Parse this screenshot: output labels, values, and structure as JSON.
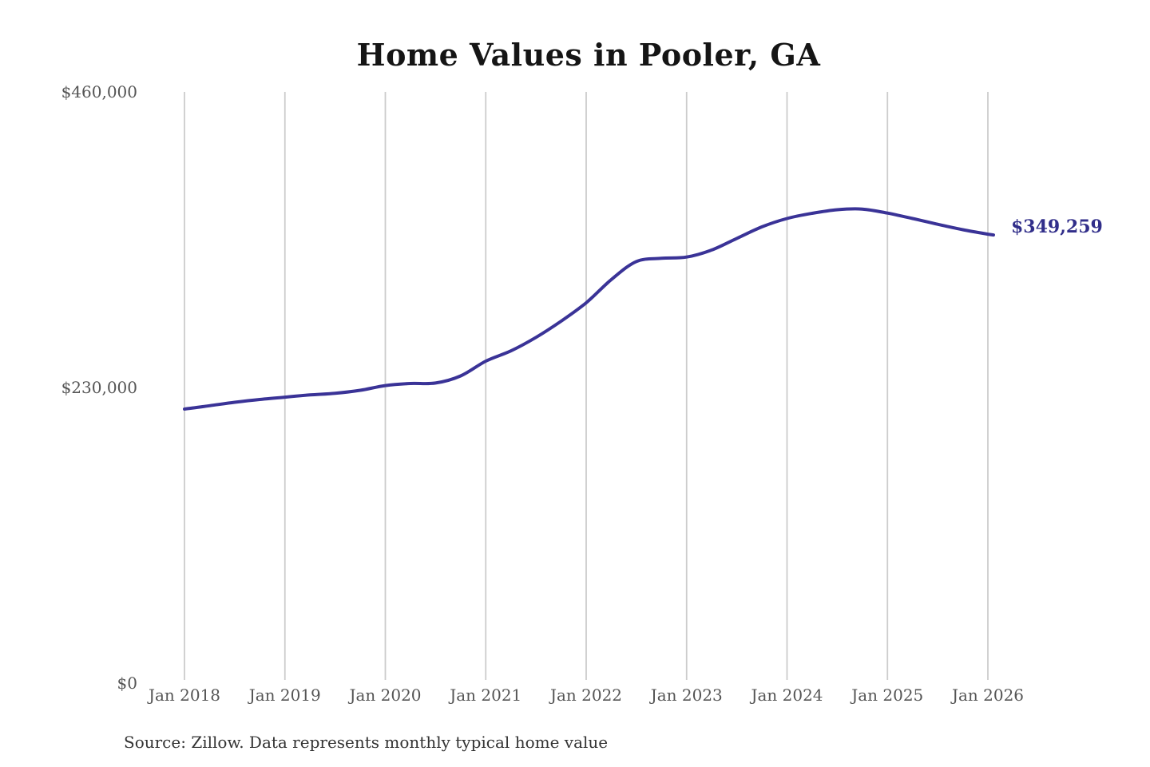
{
  "title": "Home Values in Pooler, GA",
  "source_note": "Source: Zillow. Data represents monthly typical home value",
  "colors": {
    "line": "#3a3397",
    "annotation": "#312e8a",
    "gridline": "#cccccc",
    "axis_text": "#555555",
    "title_text": "#151515",
    "note_text": "#333333"
  },
  "chart_data": {
    "type": "line",
    "title": "Home Values in Pooler, GA",
    "series_name": "Monthly typical home value",
    "unit": "USD",
    "xlabel": "",
    "ylabel": "",
    "ylim": [
      0,
      460000
    ],
    "grid": "vertical-only",
    "legend": "none",
    "line_color": "#3a3397",
    "end_label": "$349,259",
    "end_value": 349259,
    "x_ticks": [
      "Jan 2018",
      "Jan 2019",
      "Jan 2020",
      "Jan 2021",
      "Jan 2022",
      "Jan 2023",
      "Jan 2024",
      "Jan 2025",
      "Jan 2026"
    ],
    "y_ticks": [
      {
        "label": "$460,000",
        "value": 460000
      },
      {
        "label": "$230,000",
        "value": 230000
      },
      {
        "label": "$0",
        "value": 0
      }
    ],
    "points": [
      [
        "2018-01",
        213200
      ],
      [
        "2018-04",
        215800
      ],
      [
        "2018-07",
        218500
      ],
      [
        "2018-10",
        220700
      ],
      [
        "2019-01",
        222500
      ],
      [
        "2019-04",
        224200
      ],
      [
        "2019-07",
        225500
      ],
      [
        "2019-10",
        227800
      ],
      [
        "2020-01",
        231500
      ],
      [
        "2020-04",
        233100
      ],
      [
        "2020-07",
        233500
      ],
      [
        "2020-10",
        239000
      ],
      [
        "2021-01",
        250500
      ],
      [
        "2021-04",
        258500
      ],
      [
        "2021-07",
        269000
      ],
      [
        "2021-10",
        281600
      ],
      [
        "2022-01",
        295900
      ],
      [
        "2022-04",
        313900
      ],
      [
        "2022-07",
        328000
      ],
      [
        "2022-10",
        330500
      ],
      [
        "2023-01",
        331500
      ],
      [
        "2023-04",
        337000
      ],
      [
        "2023-07",
        346000
      ],
      [
        "2023-10",
        355000
      ],
      [
        "2024-01",
        361500
      ],
      [
        "2024-04",
        365500
      ],
      [
        "2024-07",
        368300
      ],
      [
        "2024-10",
        368800
      ],
      [
        "2025-01",
        365700
      ],
      [
        "2025-04",
        361500
      ],
      [
        "2025-07",
        357000
      ],
      [
        "2025-10",
        352800
      ],
      [
        "2026-01",
        349259
      ]
    ]
  }
}
